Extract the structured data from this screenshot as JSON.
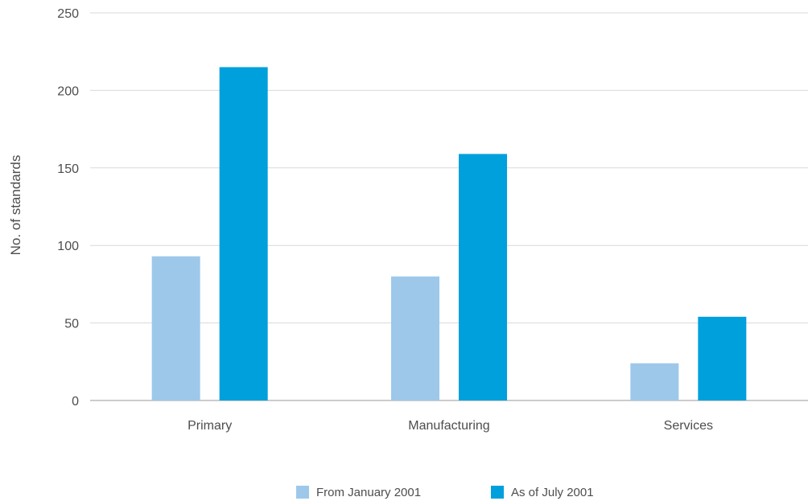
{
  "chart_data": {
    "type": "bar",
    "title": "",
    "xlabel": "",
    "ylabel": "No. of standards",
    "categories": [
      "Primary",
      "Manufacturing",
      "Services"
    ],
    "series": [
      {
        "name": "From January 2001",
        "values": [
          93,
          80,
          24
        ],
        "color": "#9dc8ea"
      },
      {
        "name": "As of July 2001",
        "values": [
          215,
          159,
          54
        ],
        "color": "#00a0dc"
      }
    ],
    "ylim": [
      0,
      250
    ],
    "yticks": [
      0,
      50,
      100,
      150,
      200,
      250
    ],
    "grid": true,
    "legend_position": "bottom-center"
  }
}
